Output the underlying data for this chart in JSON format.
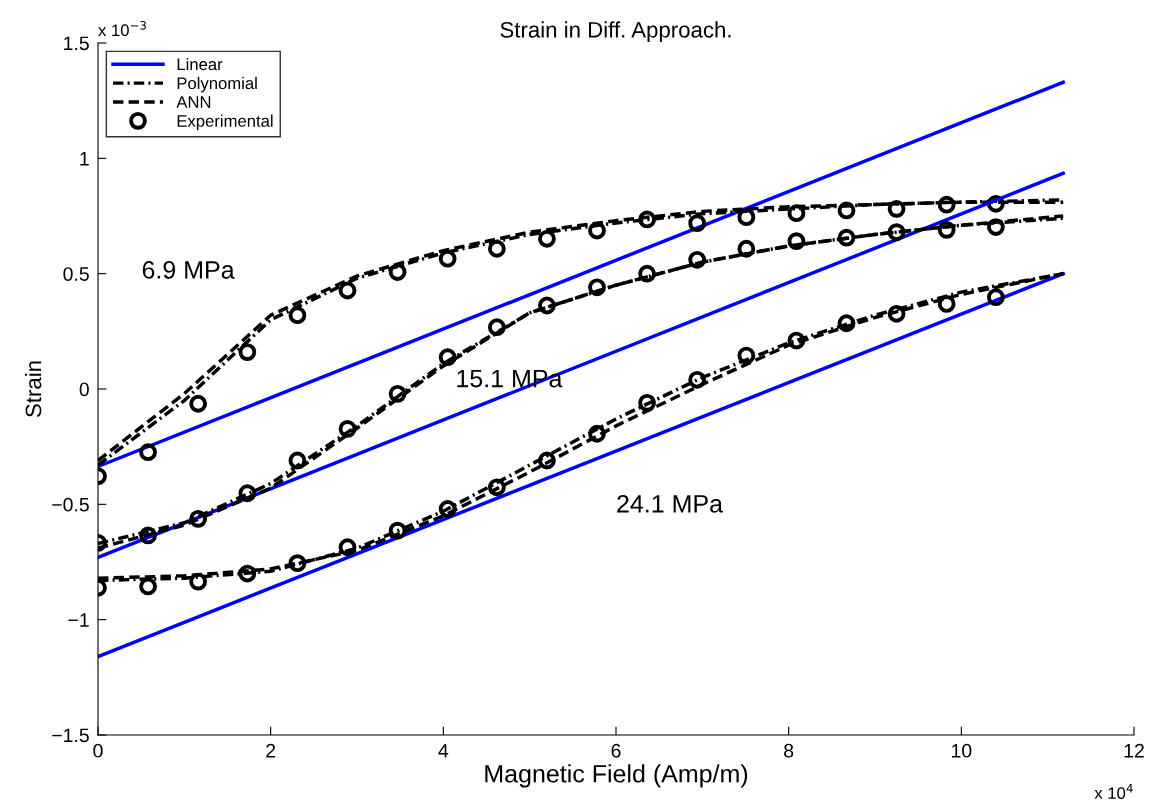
{
  "chart_data": {
    "type": "line",
    "title": "Strain in Diff. Approach.",
    "xlabel": "Magnetic Field (Amp/m)",
    "ylabel": "Strain",
    "xlim": [
      0,
      12
    ],
    "xticks": [
      0,
      2,
      4,
      6,
      8,
      10,
      12
    ],
    "ylim": [
      -1.5,
      1.5
    ],
    "yticks": [
      -1.5,
      -1,
      -0.5,
      0,
      0.5,
      1,
      1.5
    ],
    "grid": false,
    "legend": "top left",
    "annotations": [
      "x 10$^{−3}$",
      "x 10$^{4}$",
      "6.9 MPa",
      "15.1 MPa",
      "24.1 MPa"
    ],
    "series": [
      {
        "name": "Linear",
        "line_style": "solid",
        "marker": "none",
        "color": "#0000ff",
        "x": [
          0,
          11.18
        ],
        "values": [
          -0.336,
          1.33
        ]
      },
      {
        "name": "Polynomial",
        "line_style": "dashdot",
        "marker": "none",
        "color": "#000000",
        "x": [
          0,
          1,
          2,
          3,
          4,
          5,
          6,
          7,
          8,
          9,
          10,
          11.18
        ],
        "values": [
          -0.33,
          -0.05,
          0.3,
          0.48,
          0.59,
          0.67,
          0.72,
          0.76,
          0.78,
          0.8,
          0.81,
          0.82
        ]
      },
      {
        "name": "ANN",
        "line_style": "dashed",
        "marker": "none",
        "color": "#000000",
        "x": [
          0,
          1,
          2,
          3,
          4,
          5,
          6,
          7,
          8,
          9,
          10,
          11.18
        ],
        "values": [
          -0.31,
          -0.02,
          0.32,
          0.49,
          0.6,
          0.68,
          0.73,
          0.77,
          0.79,
          0.8,
          0.81,
          0.81
        ]
      },
      {
        "name": "Experimental",
        "type": "scatter",
        "marker": "circle",
        "color": "#000000",
        "x": [
          0,
          0.58,
          1.16,
          1.73,
          2.31,
          2.89,
          3.47,
          4.05,
          4.62,
          5.2,
          5.78,
          6.36,
          6.94,
          7.51,
          8.09,
          8.67,
          9.25,
          9.83,
          10.4
        ],
        "values": [
          -0.378,
          -0.274,
          -0.064,
          0.16,
          0.32,
          0.427,
          0.507,
          0.565,
          0.608,
          0.651,
          0.687,
          0.735,
          0.719,
          0.745,
          0.762,
          0.774,
          0.781,
          0.799,
          0.803
        ]
      },
      {
        "line_style": "solid",
        "marker": "none",
        "color": "#0000ff",
        "x": [
          0,
          11.18
        ],
        "values": [
          -0.73,
          0.935
        ]
      },
      {
        "line_style": "dashdot",
        "marker": "none",
        "color": "#000000",
        "x": [
          0,
          1,
          2,
          3,
          4,
          5,
          6,
          7,
          8,
          9,
          10,
          11.18
        ],
        "values": [
          -0.67,
          -0.58,
          -0.41,
          -0.16,
          0.11,
          0.33,
          0.45,
          0.55,
          0.62,
          0.67,
          0.71,
          0.74
        ]
      },
      {
        "line_style": "dashed",
        "marker": "none",
        "color": "#000000",
        "x": [
          0,
          1,
          2,
          3,
          4,
          5,
          6,
          7,
          8,
          9,
          10,
          11.18
        ],
        "values": [
          -0.69,
          -0.59,
          -0.43,
          -0.17,
          0.1,
          0.33,
          0.45,
          0.55,
          0.62,
          0.67,
          0.71,
          0.75
        ]
      },
      {
        "type": "scatter",
        "marker": "circle",
        "color": "#000000",
        "x": [
          0,
          0.58,
          1.16,
          1.73,
          2.31,
          2.89,
          3.47,
          4.05,
          4.62,
          5.2,
          5.78,
          6.36,
          6.94,
          7.51,
          8.09,
          8.67,
          9.25,
          9.83,
          10.4
        ],
        "values": [
          -0.667,
          -0.635,
          -0.563,
          -0.452,
          -0.31,
          -0.173,
          -0.021,
          0.138,
          0.268,
          0.362,
          0.441,
          0.5,
          0.56,
          0.608,
          0.641,
          0.656,
          0.68,
          0.69,
          0.702
        ]
      },
      {
        "line_style": "solid",
        "marker": "none",
        "color": "#0000ff",
        "x": [
          0,
          11.18
        ],
        "values": [
          -1.16,
          0.5
        ]
      },
      {
        "line_style": "dashdot",
        "marker": "none",
        "color": "#000000",
        "x": [
          0,
          1,
          2,
          3,
          4,
          5,
          6,
          7,
          8,
          9,
          10,
          11.18
        ],
        "values": [
          -0.83,
          -0.82,
          -0.79,
          -0.69,
          -0.53,
          -0.33,
          -0.13,
          0.05,
          0.2,
          0.32,
          0.42,
          0.5
        ]
      },
      {
        "line_style": "dashed",
        "marker": "none",
        "color": "#000000",
        "x": [
          0,
          1,
          2,
          3,
          4,
          5,
          6,
          7,
          8,
          9,
          10,
          11.18
        ],
        "values": [
          -0.82,
          -0.81,
          -0.78,
          -0.7,
          -0.55,
          -0.36,
          -0.16,
          0.02,
          0.19,
          0.31,
          0.41,
          0.5
        ]
      },
      {
        "type": "scatter",
        "marker": "circle",
        "color": "#000000",
        "x": [
          0,
          0.58,
          1.16,
          1.73,
          2.31,
          2.89,
          3.47,
          4.05,
          4.62,
          5.2,
          5.78,
          6.36,
          6.94,
          7.51,
          8.09,
          8.67,
          9.25,
          9.83,
          10.4
        ],
        "values": [
          -0.862,
          -0.856,
          -0.835,
          -0.8,
          -0.755,
          -0.686,
          -0.614,
          -0.52,
          -0.426,
          -0.31,
          -0.194,
          -0.06,
          0.04,
          0.145,
          0.21,
          0.285,
          0.326,
          0.369,
          0.398
        ]
      }
    ]
  }
}
